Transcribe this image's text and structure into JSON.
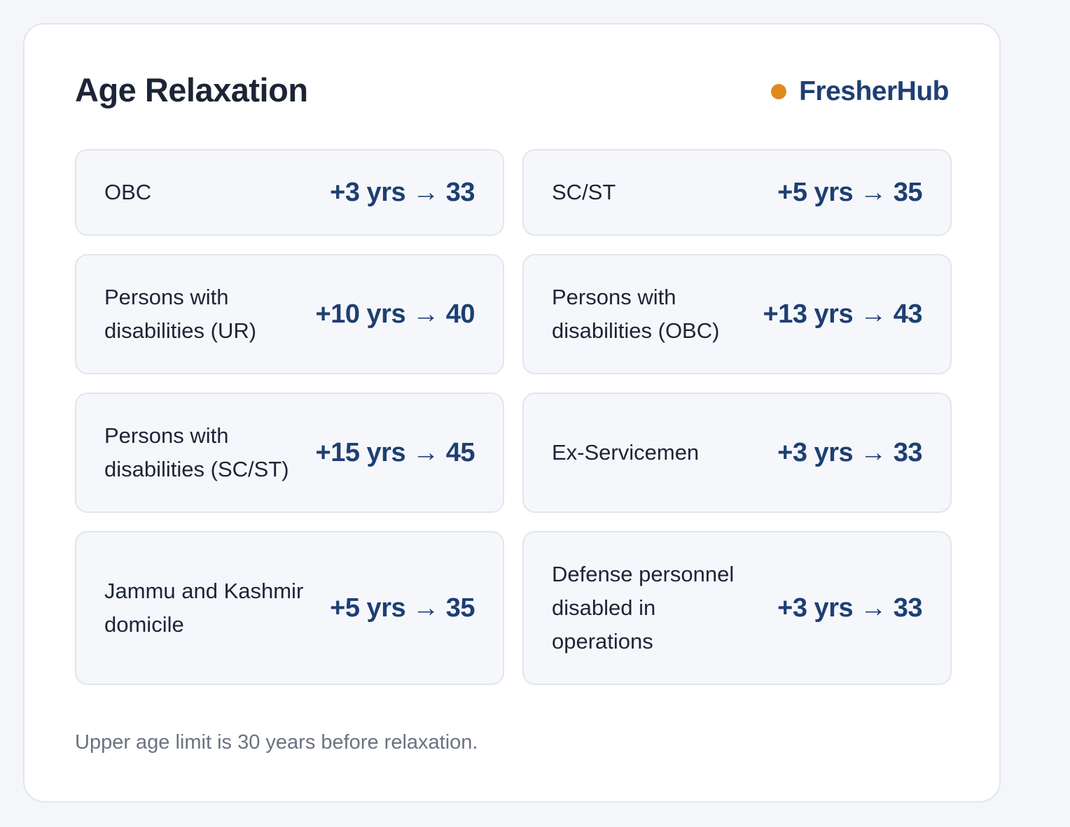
{
  "header": {
    "title": "Age Relaxation",
    "brand": "FresherHub"
  },
  "items": [
    {
      "label": "OBC",
      "value": "+3 yrs → 33"
    },
    {
      "label": "SC/ST",
      "value": "+5 yrs → 35"
    },
    {
      "label": "Persons with disabilities (UR)",
      "value": "+10 yrs → 40"
    },
    {
      "label": "Persons with disabilities (OBC)",
      "value": "+13 yrs → 43"
    },
    {
      "label": "Persons with disabilities (SC/ST)",
      "value": "+15 yrs → 45"
    },
    {
      "label": "Ex-Servicemen",
      "value": "+3 yrs → 33"
    },
    {
      "label": "Jammu and Kashmir domicile",
      "value": "+5 yrs → 35"
    },
    {
      "label": "Defense personnel disabled in operations",
      "value": "+3 yrs → 33"
    }
  ],
  "footer": {
    "note": "Upper age limit is 30 years before relaxation."
  }
}
